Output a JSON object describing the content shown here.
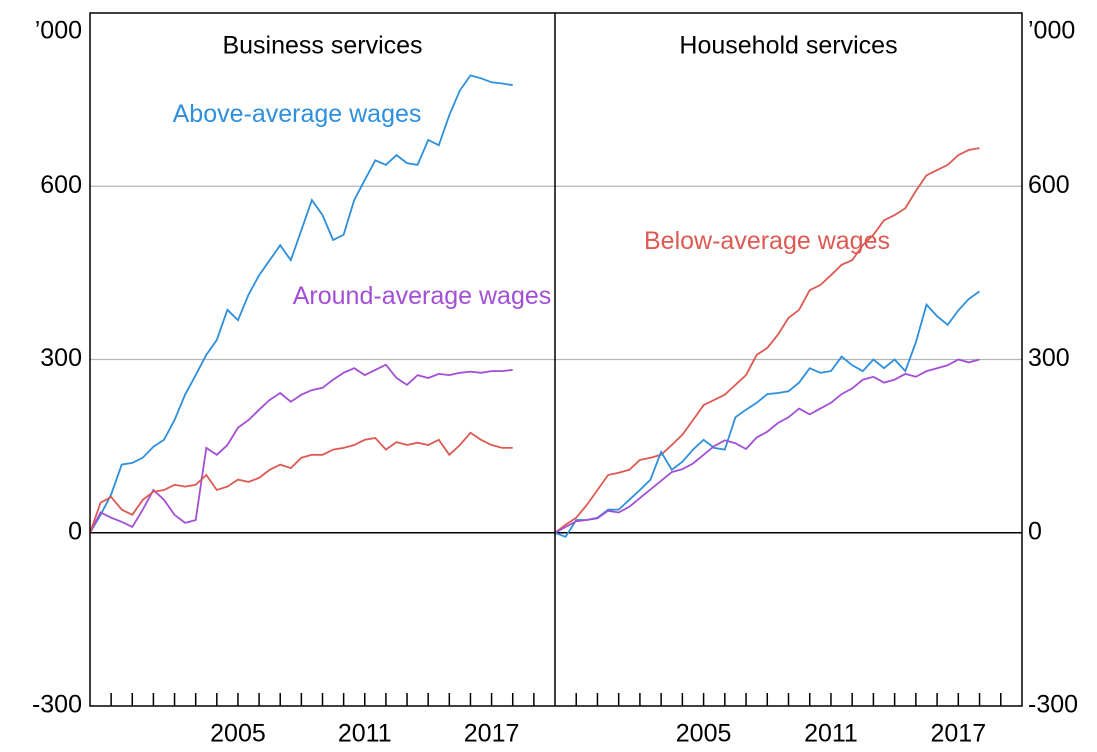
{
  "chart_data": [
    {
      "type": "line",
      "title": "Business services",
      "y_label": "’000",
      "xlim": [
        1998,
        2020
      ],
      "xticks": [
        2005,
        2011,
        2017
      ],
      "x_minor_ticks": [
        1999,
        2000,
        2001,
        2002,
        2003,
        2004,
        2005,
        2006,
        2007,
        2008,
        2009,
        2010,
        2011,
        2012,
        2013,
        2014,
        2015,
        2016,
        2017,
        2018,
        2019
      ],
      "ylim": [
        -300,
        900
      ],
      "yticks": [
        -300,
        0,
        300,
        600
      ],
      "grid": true,
      "y_axis_side": "left",
      "x": [
        1998,
        1998.5,
        1999,
        1999.5,
        2000,
        2000.5,
        2001,
        2001.5,
        2002,
        2002.5,
        2003,
        2003.5,
        2004,
        2004.5,
        2005,
        2005.5,
        2006,
        2006.5,
        2007,
        2007.5,
        2008,
        2008.5,
        2009,
        2009.5,
        2010,
        2010.5,
        2011,
        2011.5,
        2012,
        2012.5,
        2013,
        2013.5,
        2014,
        2014.5,
        2015,
        2015.5,
        2016,
        2016.5,
        2017,
        2017.5,
        2018
      ],
      "series": [
        {
          "name": "Above-average wages",
          "color": "#2e8fdc",
          "values": [
            0,
            31,
            66,
            118,
            121,
            130,
            149,
            161,
            195,
            239,
            273,
            308,
            334,
            386,
            368,
            412,
            446,
            472,
            498,
            472,
            524,
            576,
            550,
            507,
            516,
            576,
            611,
            645,
            637,
            654,
            640,
            637,
            680,
            671,
            723,
            766,
            792,
            787,
            780,
            778,
            775
          ]
        },
        {
          "name": "Around-average wages",
          "color": "#a24fd6",
          "values": [
            0,
            35,
            26,
            19,
            10,
            40,
            74,
            57,
            31,
            17,
            22,
            147,
            135,
            152,
            182,
            195,
            213,
            230,
            242,
            227,
            239,
            247,
            251,
            265,
            277,
            285,
            273,
            282,
            291,
            268,
            256,
            273,
            268,
            275,
            273,
            277,
            279,
            277,
            280,
            280,
            282
          ]
        },
        {
          "color": "#dc5a52",
          "values": [
            0,
            52,
            62,
            40,
            31,
            57,
            71,
            74,
            83,
            80,
            83,
            100,
            74,
            80,
            92,
            88,
            95,
            109,
            118,
            112,
            130,
            135,
            135,
            144,
            147,
            152,
            161,
            164,
            144,
            157,
            152,
            156,
            152,
            161,
            135,
            152,
            173,
            161,
            152,
            147,
            147
          ]
        }
      ]
    },
    {
      "type": "line",
      "title": "Household services",
      "y_label": "’000",
      "xlim": [
        1998,
        2020
      ],
      "xticks": [
        2005,
        2011,
        2017
      ],
      "x_minor_ticks": [
        1999,
        2000,
        2001,
        2002,
        2003,
        2004,
        2005,
        2006,
        2007,
        2008,
        2009,
        2010,
        2011,
        2012,
        2013,
        2014,
        2015,
        2016,
        2017,
        2018,
        2019
      ],
      "ylim": [
        -300,
        900
      ],
      "yticks": [
        -300,
        0,
        300,
        600
      ],
      "grid": true,
      "y_axis_side": "right",
      "x": [
        1998,
        1998.5,
        1999,
        1999.5,
        2000,
        2000.5,
        2001,
        2001.5,
        2002,
        2002.5,
        2003,
        2003.5,
        2004,
        2004.5,
        2005,
        2005.5,
        2006,
        2006.5,
        2007,
        2007.5,
        2008,
        2008.5,
        2009,
        2009.5,
        2010,
        2010.5,
        2011,
        2011.5,
        2012,
        2012.5,
        2013,
        2013.5,
        2014,
        2014.5,
        2015,
        2015.5,
        2016,
        2016.5,
        2017,
        2017.5,
        2018
      ],
      "series": [
        {
          "name": "Below-average wages",
          "color": "#dc5a52",
          "values": [
            0,
            14,
            26,
            48,
            74,
            100,
            104,
            109,
            126,
            130,
            135,
            152,
            170,
            195,
            221,
            230,
            239,
            256,
            273,
            308,
            320,
            343,
            372,
            386,
            420,
            429,
            446,
            464,
            472,
            498,
            516,
            541,
            550,
            562,
            592,
            619,
            628,
            637,
            654,
            663,
            666
          ]
        },
        {
          "color": "#2e8fdc",
          "values": [
            0,
            -7,
            22,
            22,
            26,
            40,
            40,
            57,
            74,
            92,
            140,
            109,
            123,
            144,
            161,
            147,
            144,
            200,
            213,
            225,
            240,
            242,
            245,
            260,
            285,
            277,
            280,
            305,
            290,
            280,
            300,
            285,
            300,
            280,
            330,
            395,
            375,
            360,
            385,
            405,
            418
          ]
        },
        {
          "color": "#a24fd6",
          "values": [
            0,
            10,
            20,
            22,
            25,
            38,
            35,
            45,
            60,
            75,
            90,
            105,
            110,
            120,
            135,
            150,
            160,
            155,
            145,
            165,
            175,
            190,
            200,
            215,
            205,
            215,
            225,
            240,
            250,
            265,
            270,
            260,
            265,
            275,
            270,
            280,
            285,
            290,
            300,
            295,
            300
          ]
        }
      ]
    }
  ]
}
